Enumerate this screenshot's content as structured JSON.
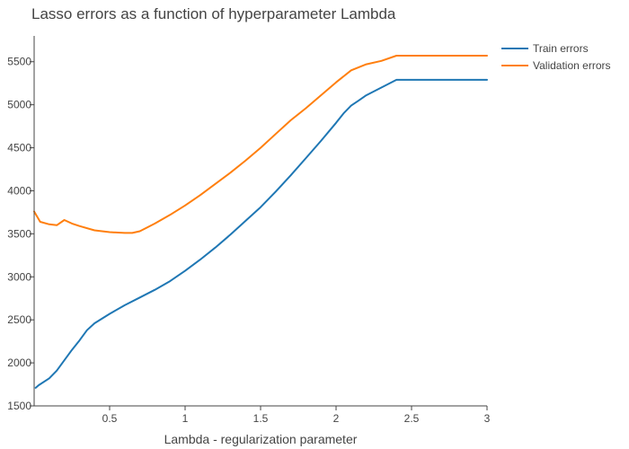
{
  "chart_data": {
    "type": "line",
    "title": "Lasso errors as a function of hyperparameter Lambda",
    "xlabel": "Lambda - regularization parameter",
    "ylabel": "",
    "xlim": [
      0,
      3
    ],
    "ylim": [
      1500,
      5800
    ],
    "x_ticks": [
      0.5,
      1,
      1.5,
      2,
      2.5,
      3
    ],
    "x_tick_labels": [
      "0.5",
      "1",
      "1.5",
      "2",
      "2.5",
      "3"
    ],
    "y_ticks": [
      1500,
      2000,
      2500,
      3000,
      3500,
      4000,
      4500,
      5000,
      5500
    ],
    "y_tick_labels": [
      "1500",
      "2000",
      "2500",
      "3000",
      "3500",
      "4000",
      "4500",
      "5000",
      "5500"
    ],
    "grid": false,
    "legend_position": "top-right",
    "series": [
      {
        "name": "Train errors",
        "color": "#1f77b4",
        "x": [
          0.01,
          0.03,
          0.1,
          0.15,
          0.2,
          0.25,
          0.3,
          0.35,
          0.4,
          0.5,
          0.6,
          0.7,
          0.8,
          0.9,
          1.0,
          1.1,
          1.2,
          1.3,
          1.4,
          1.5,
          1.6,
          1.7,
          1.8,
          1.9,
          2.0,
          2.05,
          2.1,
          2.15,
          2.2,
          2.3,
          2.4,
          2.5,
          2.6,
          2.7,
          2.8,
          2.9,
          3.0
        ],
        "y": [
          1710,
          1740,
          1820,
          1910,
          2030,
          2150,
          2260,
          2380,
          2460,
          2570,
          2670,
          2760,
          2850,
          2950,
          3070,
          3200,
          3340,
          3490,
          3650,
          3810,
          3990,
          4180,
          4380,
          4580,
          4790,
          4900,
          4990,
          5050,
          5110,
          5200,
          5290,
          5290,
          5290,
          5290,
          5290,
          5290,
          5290
        ]
      },
      {
        "name": "Validation errors",
        "color": "#ff7f0e",
        "x": [
          0.0,
          0.04,
          0.1,
          0.15,
          0.2,
          0.25,
          0.3,
          0.4,
          0.5,
          0.6,
          0.65,
          0.7,
          0.8,
          0.9,
          1.0,
          1.1,
          1.2,
          1.3,
          1.4,
          1.5,
          1.6,
          1.7,
          1.8,
          1.9,
          2.0,
          2.1,
          2.2,
          2.3,
          2.4,
          2.5,
          2.6,
          2.7,
          2.8,
          2.9,
          3.0
        ],
        "y": [
          3760,
          3640,
          3610,
          3600,
          3660,
          3620,
          3590,
          3540,
          3520,
          3510,
          3510,
          3530,
          3620,
          3720,
          3830,
          3950,
          4080,
          4210,
          4350,
          4500,
          4660,
          4820,
          4960,
          5110,
          5260,
          5400,
          5470,
          5510,
          5570,
          5570,
          5570,
          5570,
          5570,
          5570,
          5570
        ]
      }
    ]
  }
}
